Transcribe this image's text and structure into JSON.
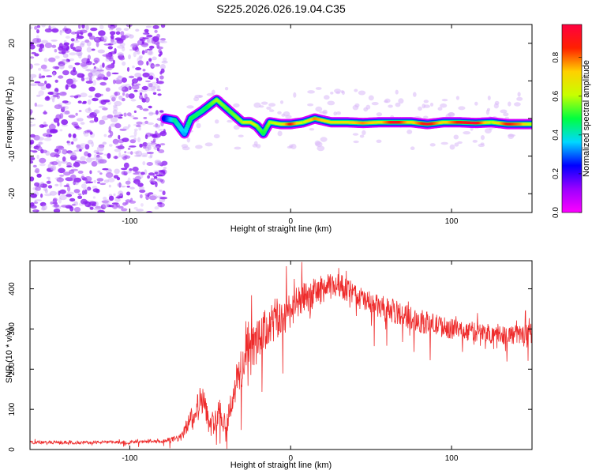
{
  "title": "S225.2026.026.19.04.C35",
  "colors": {
    "snr_line": "#ee2b2b",
    "background": "#ffffff",
    "axis": "#000000",
    "colormap": [
      "#ff00ff",
      "#9b00ff",
      "#0000ff",
      "#00d8ff",
      "#00ff40",
      "#c8ff00",
      "#ffd000",
      "#ff2000",
      "#ff0040"
    ]
  },
  "chart_data": [
    {
      "type": "heatmap",
      "name": "spectrogram",
      "xlabel": "Height of straight line (km)",
      "ylabel": "Frequency (Hz)",
      "xlim": [
        -162,
        150
      ],
      "ylim": [
        -25,
        25
      ],
      "xticks": [
        -100,
        0,
        100
      ],
      "xtick_labels": [
        "-100",
        "0",
        "100"
      ],
      "yticks": [
        -20,
        -10,
        0,
        10,
        20
      ],
      "ytick_labels": [
        "-20",
        "-10",
        "0",
        "10",
        "20"
      ],
      "colorbar": {
        "label": "Normalized spectral amplitude",
        "range": [
          0,
          0.97
        ],
        "ticks": [
          0.0,
          0.2,
          0.4,
          0.6,
          0.8
        ],
        "tick_labels": [
          "0.0",
          "0.2",
          "0.4",
          "0.6",
          "0.8"
        ]
      },
      "noise_region_x": [
        -162,
        -78
      ],
      "ridge": [
        {
          "x": -78,
          "freq": 0,
          "amp": 0.25
        },
        {
          "x": -72,
          "freq": -0.5,
          "amp": 0.45
        },
        {
          "x": -66,
          "freq": -4,
          "amp": 0.35
        },
        {
          "x": -62,
          "freq": 0,
          "amp": 0.5
        },
        {
          "x": -55,
          "freq": 2,
          "amp": 0.45
        },
        {
          "x": -46,
          "freq": 5,
          "amp": 0.6
        },
        {
          "x": -38,
          "freq": 2,
          "amp": 0.55
        },
        {
          "x": -30,
          "freq": -1,
          "amp": 0.6
        },
        {
          "x": -25,
          "freq": -1,
          "amp": 0.7
        },
        {
          "x": -21,
          "freq": -2,
          "amp": 0.6
        },
        {
          "x": -17,
          "freq": -4,
          "amp": 0.5
        },
        {
          "x": -13,
          "freq": -1,
          "amp": 0.6
        },
        {
          "x": -6,
          "freq": -1.5,
          "amp": 0.65
        },
        {
          "x": 0,
          "freq": -1.5,
          "amp": 0.9
        },
        {
          "x": 8,
          "freq": -1,
          "amp": 0.6
        },
        {
          "x": 15,
          "freq": 0,
          "amp": 0.8
        },
        {
          "x": 25,
          "freq": -1,
          "amp": 0.7
        },
        {
          "x": 35,
          "freq": -1,
          "amp": 0.7
        },
        {
          "x": 45,
          "freq": -1.2,
          "amp": 0.8
        },
        {
          "x": 55,
          "freq": -1,
          "amp": 0.7
        },
        {
          "x": 65,
          "freq": -1,
          "amp": 0.95
        },
        {
          "x": 75,
          "freq": -1,
          "amp": 0.7
        },
        {
          "x": 85,
          "freq": -1.5,
          "amp": 0.95
        },
        {
          "x": 95,
          "freq": -1,
          "amp": 0.7
        },
        {
          "x": 105,
          "freq": -1,
          "amp": 0.9
        },
        {
          "x": 115,
          "freq": -1.2,
          "amp": 0.95
        },
        {
          "x": 125,
          "freq": -1,
          "amp": 0.6
        },
        {
          "x": 135,
          "freq": -1.5,
          "amp": 0.9
        },
        {
          "x": 143,
          "freq": -1.5,
          "amp": 0.8
        },
        {
          "x": 150,
          "freq": -1.5,
          "amp": 0.6
        }
      ]
    },
    {
      "type": "line",
      "name": "snr",
      "xlabel": "Height of straight line (km)",
      "ylabel": "SNR (10 * v/v)",
      "xlim": [
        -162,
        150
      ],
      "ylim": [
        0,
        470
      ],
      "xticks": [
        -100,
        0,
        100
      ],
      "xtick_labels": [
        "-100",
        "0",
        "100"
      ],
      "yticks": [
        0,
        100,
        200,
        300,
        400
      ],
      "ytick_labels": [
        "0",
        "100",
        "200",
        "300",
        "400"
      ],
      "series": [
        {
          "name": "SNR",
          "x": [
            -162,
            -140,
            -120,
            -100,
            -80,
            -68,
            -62,
            -55,
            -50,
            -45,
            -40,
            -35,
            -30,
            -25,
            -20,
            -15,
            -10,
            -5,
            0,
            10,
            20,
            30,
            40,
            50,
            60,
            80,
            100,
            120,
            140,
            150
          ],
          "values": [
            18,
            17,
            18,
            18,
            20,
            30,
            80,
            130,
            55,
            100,
            60,
            150,
            210,
            250,
            270,
            300,
            320,
            330,
            350,
            380,
            400,
            410,
            385,
            360,
            350,
            320,
            300,
            290,
            285,
            290
          ],
          "jitter": [
            4,
            4,
            4,
            4,
            4,
            10,
            25,
            40,
            25,
            40,
            30,
            45,
            60,
            55,
            55,
            55,
            55,
            55,
            45,
            40,
            35,
            30,
            30,
            30,
            30,
            30,
            25,
            25,
            25,
            25
          ]
        }
      ]
    }
  ]
}
